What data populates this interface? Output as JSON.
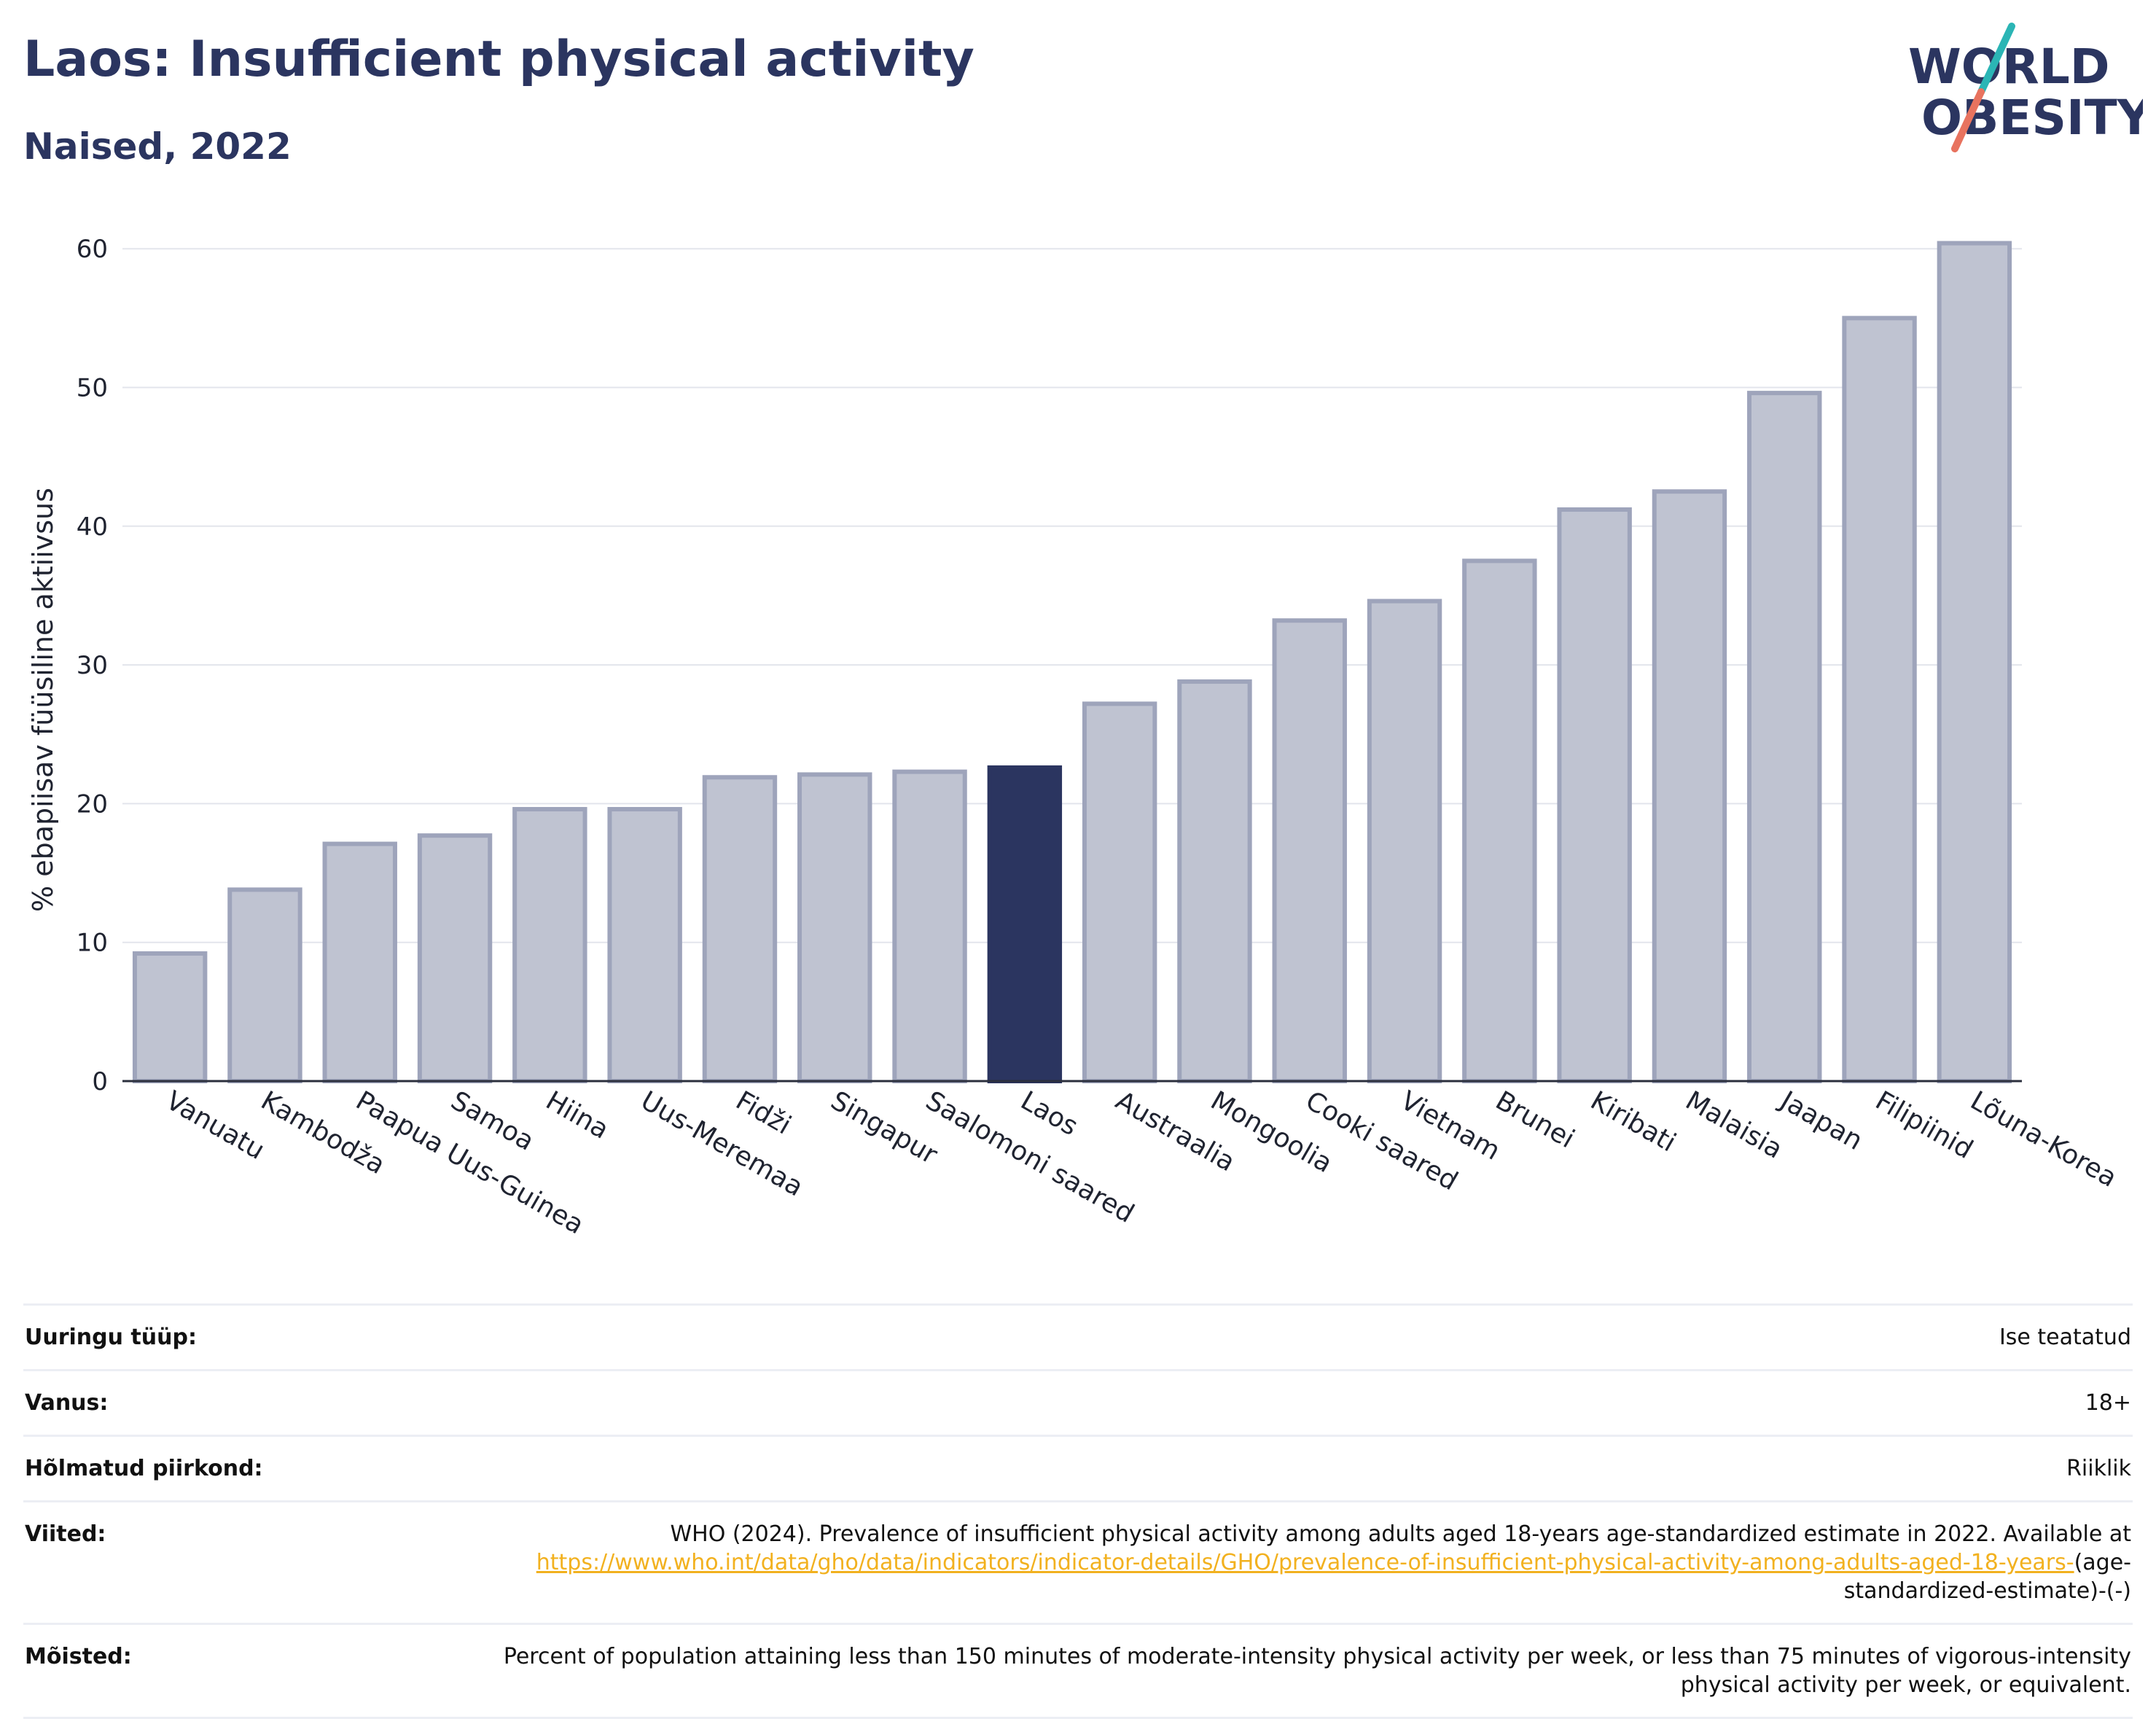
{
  "title": "Laos: Insufficient physical activity",
  "subtitle": "Naised, 2022",
  "logo": {
    "line1": "WORLD",
    "line2": "OBESITY",
    "slash_colors": [
      "#2bb5b5",
      "#e8735f"
    ]
  },
  "colors": {
    "highlight": "#2b3560",
    "bar_fill": "#bfc3d1",
    "bar_stroke": "#9ea4bb",
    "text": "#2b3560",
    "link": "#f2b11f"
  },
  "chart_data": {
    "type": "bar",
    "title": "Laos: Insufficient physical activity",
    "subtitle": "Naised, 2022",
    "ylabel": "% ebapiisav füüsiline aktiivsus",
    "ylim": [
      0,
      62
    ],
    "yticks": [
      0,
      10,
      20,
      30,
      40,
      50,
      60
    ],
    "grid": true,
    "highlight": "Laos",
    "categories": [
      "Vanuatu",
      "Kambodža",
      "Paapua Uus-Guinea",
      "Samoa",
      "Hiina",
      "Uus-Meremaa",
      "Fidži",
      "Singapur",
      "Saalomoni saared",
      "Laos",
      "Austraalia",
      "Mongoolia",
      "Cooki saared",
      "Vietnam",
      "Brunei",
      "Kiribati",
      "Malaisia",
      "Jaapan",
      "Filipiinid",
      "Lõuna-Korea"
    ],
    "values": [
      9.2,
      13.8,
      17.1,
      17.7,
      19.6,
      19.6,
      21.9,
      22.1,
      22.3,
      22.6,
      27.2,
      28.8,
      33.2,
      34.6,
      37.5,
      41.2,
      42.5,
      49.6,
      55.0,
      60.4
    ]
  },
  "meta": [
    {
      "label": "Uuringu tüüp:",
      "value": "Ise teatatud"
    },
    {
      "label": "Vanus:",
      "value": "18+"
    },
    {
      "label": "Hõlmatud piirkond:",
      "value": "Riiklik"
    },
    {
      "label": "Viited:",
      "value": "WHO (2024). Prevalence of insufficient physical activity among adults aged 18-years age-standardized estimate in 2022. Available at ",
      "link": "https://www.who.int/data/gho/data/indicators/indicator-details/GHO/prevalence-of-insufficient-physical-activity-among-adults-aged-18-years-",
      "suffix": "(age-standardized-estimate)-(-)"
    },
    {
      "label": "Mõisted:",
      "value": "Percent of population attaining less than 150 minutes of moderate-intensity physical activity per week, or less than 75 minutes of vigorous-intensity physical activity per week, or equivalent."
    }
  ]
}
